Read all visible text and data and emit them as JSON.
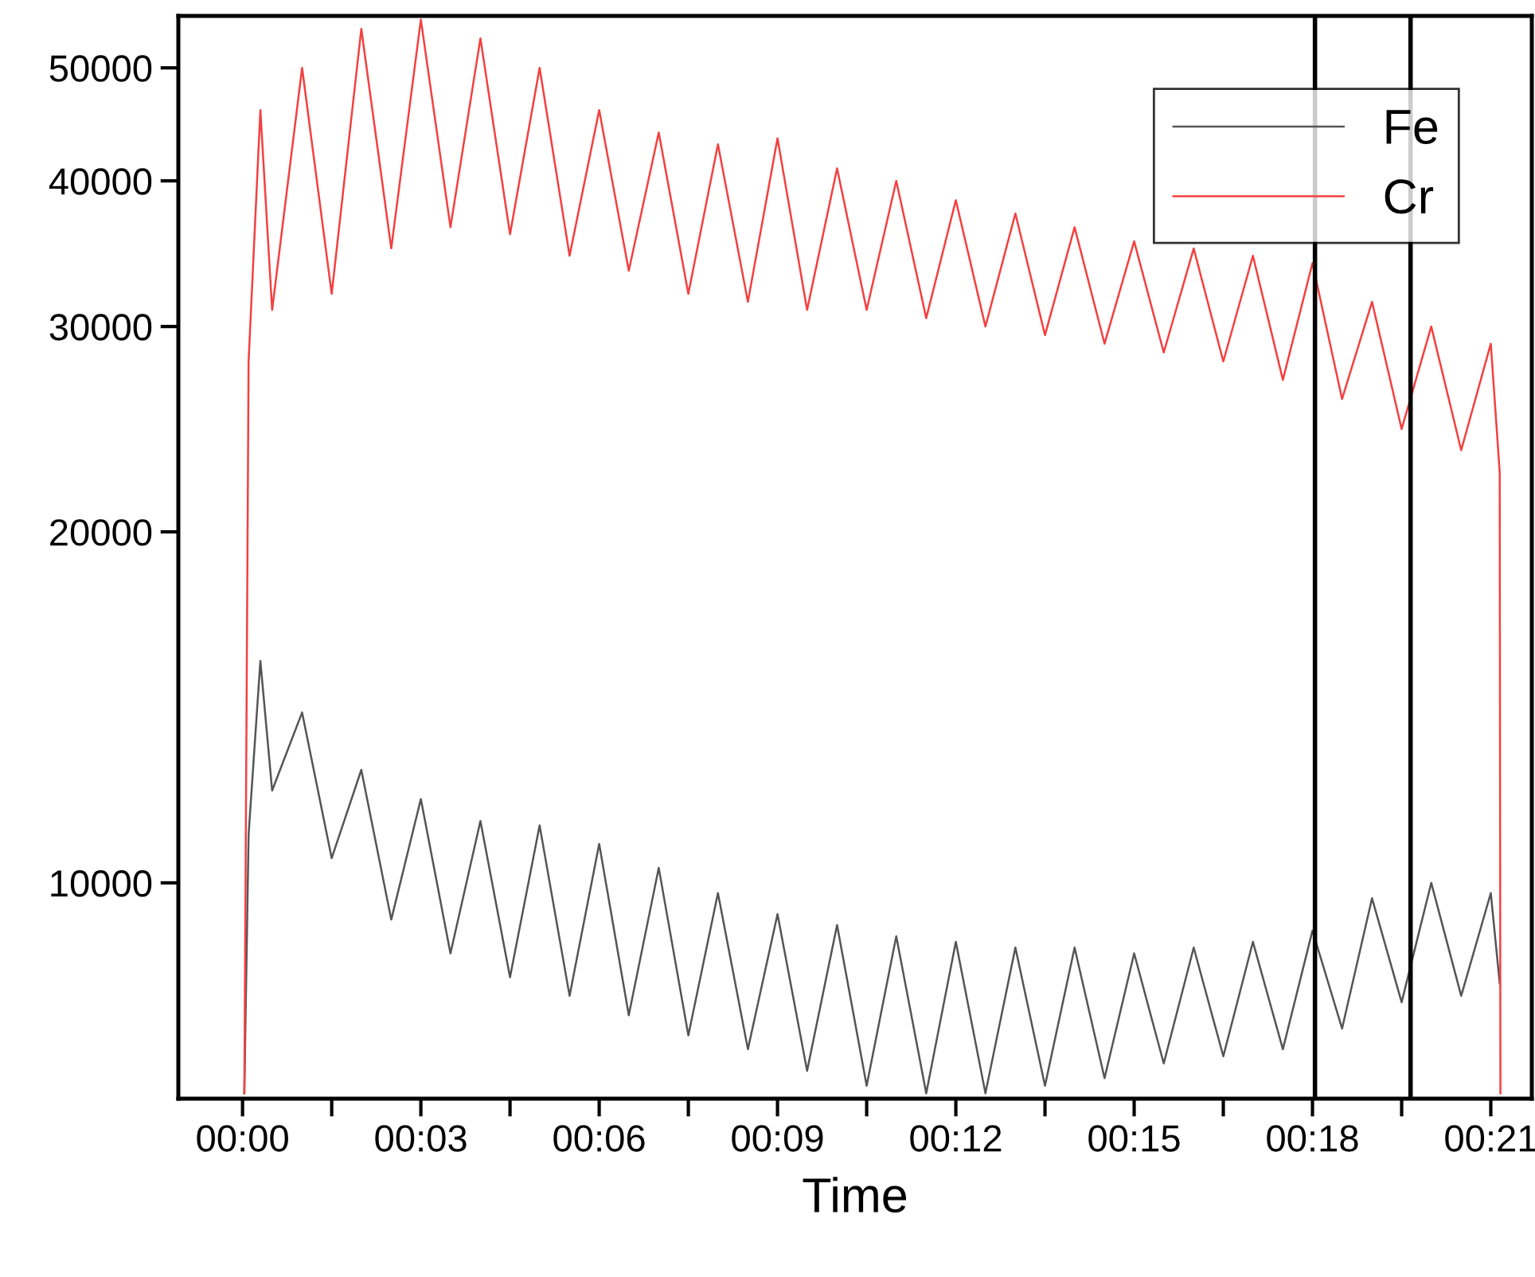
{
  "chart_data": {
    "type": "line",
    "xlabel": "Time",
    "log": "y",
    "legend": "top right",
    "grid": false,
    "marker": "none",
    "line_style": "solid",
    "xlim": [
      -0.018,
      0.3615
    ],
    "ylim": [
      6530,
      55400
    ],
    "xticks": [
      {
        "value": 0,
        "label": "00:00"
      },
      {
        "value": 0.025,
        "label": null
      },
      {
        "value": 0.05,
        "label": "00:03"
      },
      {
        "value": 0.075,
        "label": null
      },
      {
        "value": 0.1,
        "label": "00:06"
      },
      {
        "value": 0.125,
        "label": null
      },
      {
        "value": 0.15,
        "label": "00:09"
      },
      {
        "value": 0.175,
        "label": null
      },
      {
        "value": 0.2,
        "label": "00:12"
      },
      {
        "value": 0.225,
        "label": null
      },
      {
        "value": 0.25,
        "label": "00:15"
      },
      {
        "value": 0.275,
        "label": null
      },
      {
        "value": 0.3,
        "label": "00:18"
      },
      {
        "value": 0.325,
        "label": null
      },
      {
        "value": 0.35,
        "label": "00:21"
      }
    ],
    "yticks": [
      10000,
      20000,
      30000,
      40000,
      50000
    ],
    "x": [
      0.0005,
      0.0017,
      0.005,
      0.0083,
      0.0167,
      0.025,
      0.0333,
      0.0417,
      0.05,
      0.0583,
      0.0667,
      0.075,
      0.0833,
      0.0917,
      0.1,
      0.1083,
      0.1167,
      0.125,
      0.1333,
      0.1417,
      0.15,
      0.1583,
      0.1667,
      0.175,
      0.1833,
      0.1917,
      0.2,
      0.2083,
      0.2167,
      0.225,
      0.2333,
      0.2417,
      0.25,
      0.2583,
      0.2667,
      0.275,
      0.2833,
      0.2917,
      0.3,
      0.3083,
      0.3167,
      0.325,
      0.3333,
      0.3417,
      0.35,
      0.3525,
      0.3527
    ],
    "series": [
      {
        "name": "Fe",
        "color": "#555555",
        "values": [
          6600,
          11000,
          15500,
          12000,
          14000,
          10500,
          12500,
          9300,
          11800,
          8700,
          11300,
          8300,
          11200,
          8000,
          10800,
          7700,
          10300,
          7400,
          9800,
          7200,
          9400,
          6900,
          9200,
          6700,
          9000,
          6600,
          8900,
          6600,
          8800,
          6700,
          8800,
          6800,
          8700,
          7000,
          8800,
          7100,
          8900,
          7200,
          9100,
          7500,
          9700,
          7900,
          10000,
          8000,
          9800,
          8200,
          null
        ]
      },
      {
        "name": "Cr",
        "color": "#f44040",
        "values": [
          6600,
          28000,
          46000,
          31000,
          50000,
          32000,
          54000,
          35000,
          55000,
          36500,
          53000,
          36000,
          50000,
          34500,
          46000,
          33500,
          44000,
          32000,
          43000,
          31500,
          43500,
          31000,
          41000,
          31000,
          40000,
          30500,
          38500,
          30000,
          37500,
          29500,
          36500,
          29000,
          35500,
          28500,
          35000,
          28000,
          34500,
          27000,
          34000,
          26000,
          31500,
          24500,
          30000,
          23500,
          29000,
          22500,
          6600
        ]
      }
    ],
    "ref_lines": [
      {
        "axis": "x",
        "value": 0.3007,
        "color": "#000000"
      },
      {
        "axis": "x",
        "value": 0.3275,
        "color": "#000000"
      }
    ]
  }
}
